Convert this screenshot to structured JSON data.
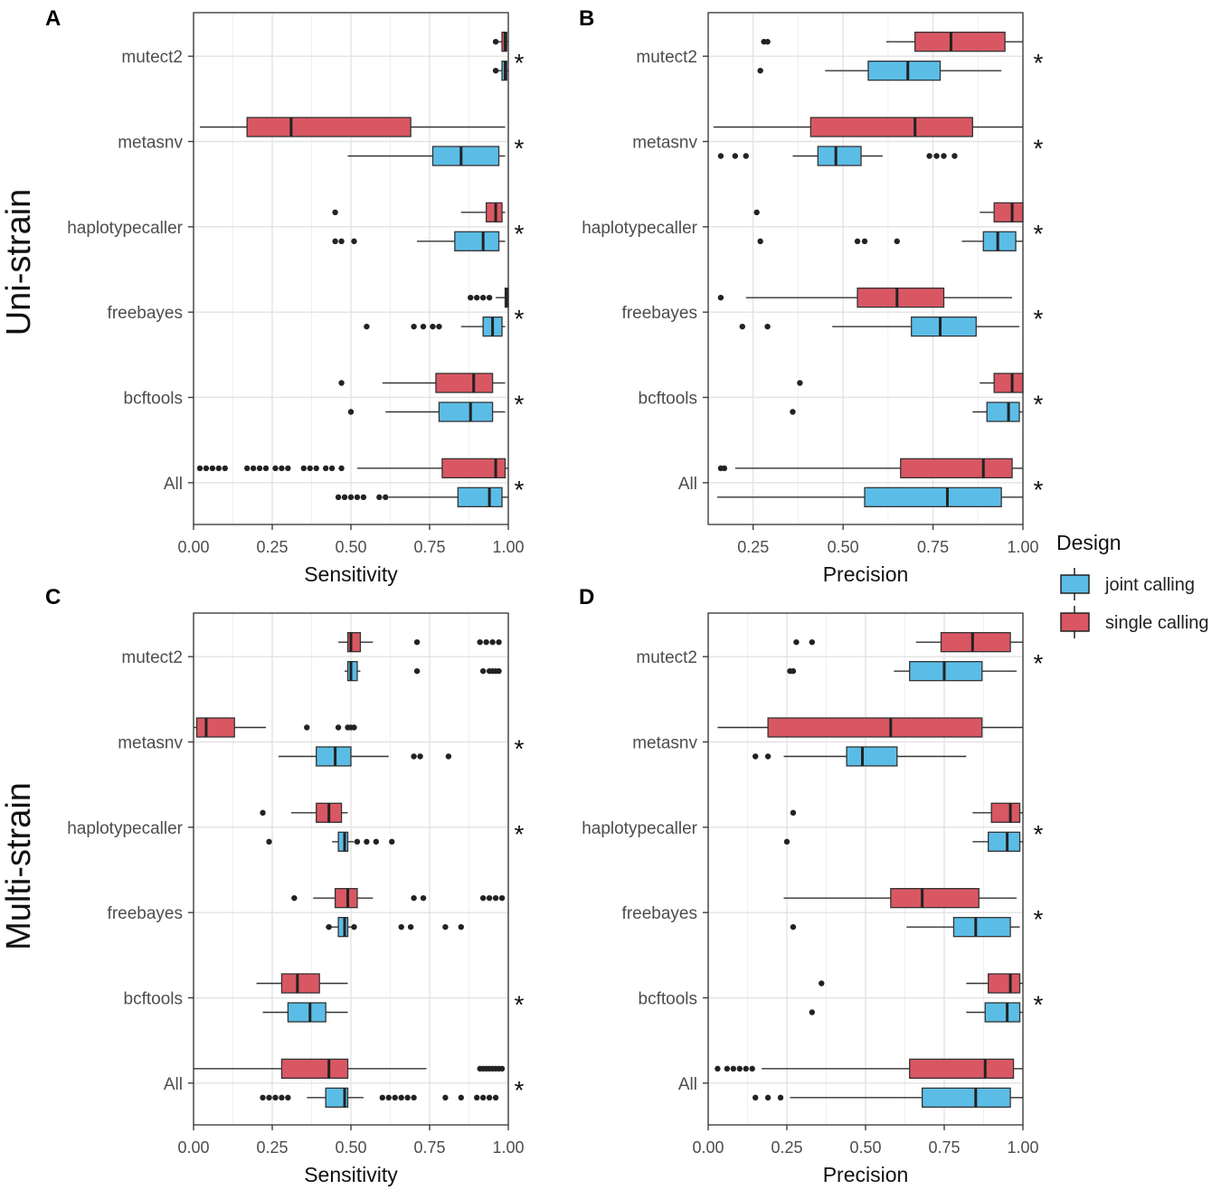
{
  "design_colors": {
    "joint": "#5bbde6",
    "single": "#d95763"
  },
  "chart_data": [
    {
      "type": "boxplot",
      "panel": "A",
      "title": "",
      "row_label": "Uni-strain",
      "xlabel": "Sensitivity",
      "ylabel": "",
      "xlim": [
        0,
        1
      ],
      "xticks": [
        0,
        0.25,
        0.5,
        0.75,
        1
      ],
      "xtick_labels": [
        "0.00",
        "0.25",
        "0.50",
        "0.75",
        "1.00"
      ],
      "categories": [
        "mutect2",
        "metasnv",
        "haplotypecaller",
        "freebayes",
        "bcftools",
        "All"
      ],
      "series": [
        {
          "name": "single calling",
          "boxes": [
            {
              "wlo": 0.96,
              "q1": 0.98,
              "med": 0.99,
              "q3": 0.995,
              "whi": 1.0,
              "out": [
                0.96
              ]
            },
            {
              "wlo": 0.02,
              "q1": 0.17,
              "med": 0.31,
              "q3": 0.69,
              "whi": 0.99,
              "out": []
            },
            {
              "wlo": 0.85,
              "q1": 0.93,
              "med": 0.96,
              "q3": 0.98,
              "whi": 0.99,
              "out": [
                0.45
              ]
            },
            {
              "wlo": 0.96,
              "q1": 0.99,
              "med": 0.995,
              "q3": 1.0,
              "whi": 1.0,
              "out": [
                0.88,
                0.9,
                0.92,
                0.94
              ]
            },
            {
              "wlo": 0.6,
              "q1": 0.77,
              "med": 0.89,
              "q3": 0.95,
              "whi": 0.99,
              "out": [
                0.47
              ]
            },
            {
              "wlo": 0.52,
              "q1": 0.79,
              "med": 0.96,
              "q3": 0.99,
              "whi": 1.0,
              "out": [
                0.02,
                0.04,
                0.06,
                0.08,
                0.1,
                0.17,
                0.19,
                0.21,
                0.23,
                0.26,
                0.28,
                0.3,
                0.35,
                0.37,
                0.39,
                0.42,
                0.44,
                0.47
              ]
            }
          ]
        },
        {
          "name": "joint calling",
          "boxes": [
            {
              "wlo": 0.96,
              "q1": 0.98,
              "med": 0.99,
              "q3": 0.995,
              "whi": 1.0,
              "out": [
                0.96
              ]
            },
            {
              "wlo": 0.49,
              "q1": 0.76,
              "med": 0.85,
              "q3": 0.97,
              "whi": 0.99,
              "out": []
            },
            {
              "wlo": 0.71,
              "q1": 0.83,
              "med": 0.92,
              "q3": 0.97,
              "whi": 0.99,
              "out": [
                0.45,
                0.47,
                0.51
              ]
            },
            {
              "wlo": 0.85,
              "q1": 0.92,
              "med": 0.95,
              "q3": 0.98,
              "whi": 0.99,
              "out": [
                0.55,
                0.7,
                0.73,
                0.76,
                0.78
              ]
            },
            {
              "wlo": 0.61,
              "q1": 0.78,
              "med": 0.88,
              "q3": 0.95,
              "whi": 0.99,
              "out": [
                0.5
              ]
            },
            {
              "wlo": 0.62,
              "q1": 0.84,
              "med": 0.94,
              "q3": 0.98,
              "whi": 1.0,
              "out": [
                0.46,
                0.48,
                0.5,
                0.52,
                0.54,
                0.59,
                0.61
              ]
            }
          ]
        }
      ],
      "significance": [
        "*",
        "*",
        "*",
        "*",
        "*",
        "*"
      ]
    },
    {
      "type": "boxplot",
      "panel": "B",
      "title": "",
      "row_label": "",
      "xlabel": "Precision",
      "ylabel": "",
      "xlim": [
        0.125,
        1
      ],
      "xticks": [
        0.25,
        0.5,
        0.75,
        1
      ],
      "xtick_labels": [
        "0.25",
        "0.50",
        "0.75",
        "1.00"
      ],
      "categories": [
        "mutect2",
        "metasnv",
        "haplotypecaller",
        "freebayes",
        "bcftools",
        "All"
      ],
      "series": [
        {
          "name": "single calling",
          "boxes": [
            {
              "wlo": 0.62,
              "q1": 0.7,
              "med": 0.8,
              "q3": 0.95,
              "whi": 1.0,
              "out": [
                0.28,
                0.29
              ]
            },
            {
              "wlo": 0.14,
              "q1": 0.41,
              "med": 0.7,
              "q3": 0.86,
              "whi": 1.0,
              "out": []
            },
            {
              "wlo": 0.88,
              "q1": 0.92,
              "med": 0.97,
              "q3": 1.0,
              "whi": 1.0,
              "out": [
                0.26
              ]
            },
            {
              "wlo": 0.23,
              "q1": 0.54,
              "med": 0.65,
              "q3": 0.78,
              "whi": 0.97,
              "out": [
                0.16
              ]
            },
            {
              "wlo": 0.88,
              "q1": 0.92,
              "med": 0.97,
              "q3": 1.0,
              "whi": 1.0,
              "out": [
                0.38
              ]
            },
            {
              "wlo": 0.2,
              "q1": 0.66,
              "med": 0.89,
              "q3": 0.97,
              "whi": 1.0,
              "out": [
                0.16,
                0.17
              ]
            }
          ]
        },
        {
          "name": "joint calling",
          "boxes": [
            {
              "wlo": 0.45,
              "q1": 0.57,
              "med": 0.68,
              "q3": 0.77,
              "whi": 0.94,
              "out": [
                0.27
              ]
            },
            {
              "wlo": 0.36,
              "q1": 0.43,
              "med": 0.48,
              "q3": 0.55,
              "whi": 0.61,
              "out": [
                0.16,
                0.2,
                0.23,
                0.74,
                0.76,
                0.78,
                0.81
              ]
            },
            {
              "wlo": 0.83,
              "q1": 0.89,
              "med": 0.93,
              "q3": 0.98,
              "whi": 1.0,
              "out": [
                0.27,
                0.54,
                0.56,
                0.65
              ]
            },
            {
              "wlo": 0.47,
              "q1": 0.69,
              "med": 0.77,
              "q3": 0.87,
              "whi": 0.99,
              "out": [
                0.22,
                0.29
              ]
            },
            {
              "wlo": 0.86,
              "q1": 0.9,
              "med": 0.96,
              "q3": 0.99,
              "whi": 1.0,
              "out": [
                0.36
              ]
            },
            {
              "wlo": 0.15,
              "q1": 0.56,
              "med": 0.79,
              "q3": 0.94,
              "whi": 1.0,
              "out": []
            }
          ]
        }
      ],
      "significance": [
        "*",
        "*",
        "*",
        "*",
        "*",
        "*"
      ]
    },
    {
      "type": "boxplot",
      "panel": "C",
      "title": "",
      "row_label": "Multi-strain",
      "xlabel": "Sensitivity",
      "ylabel": "",
      "xlim": [
        0,
        1
      ],
      "xticks": [
        0,
        0.25,
        0.5,
        0.75,
        1
      ],
      "xtick_labels": [
        "0.00",
        "0.25",
        "0.50",
        "0.75",
        "1.00"
      ],
      "categories": [
        "mutect2",
        "metasnv",
        "haplotypecaller",
        "freebayes",
        "bcftools",
        "All"
      ],
      "series": [
        {
          "name": "single calling",
          "boxes": [
            {
              "wlo": 0.46,
              "q1": 0.49,
              "med": 0.5,
              "q3": 0.53,
              "whi": 0.57,
              "out": [
                0.71,
                0.91,
                0.93,
                0.95,
                0.97
              ]
            },
            {
              "wlo": 0.0,
              "q1": 0.01,
              "med": 0.04,
              "q3": 0.13,
              "whi": 0.23,
              "out": [
                0.36,
                0.46,
                0.49,
                0.5,
                0.51
              ]
            },
            {
              "wlo": 0.31,
              "q1": 0.39,
              "med": 0.43,
              "q3": 0.47,
              "whi": 0.49,
              "out": [
                0.22
              ]
            },
            {
              "wlo": 0.38,
              "q1": 0.45,
              "med": 0.49,
              "q3": 0.52,
              "whi": 0.57,
              "out": [
                0.32,
                0.7,
                0.73,
                0.92,
                0.94,
                0.96,
                0.98
              ]
            },
            {
              "wlo": 0.2,
              "q1": 0.28,
              "med": 0.33,
              "q3": 0.4,
              "whi": 0.49,
              "out": []
            },
            {
              "wlo": 0.0,
              "q1": 0.28,
              "med": 0.43,
              "q3": 0.49,
              "whi": 0.74,
              "out": [
                0.91,
                0.92,
                0.93,
                0.94,
                0.95,
                0.96,
                0.97,
                0.98
              ]
            }
          ]
        },
        {
          "name": "joint calling",
          "boxes": [
            {
              "wlo": 0.48,
              "q1": 0.49,
              "med": 0.5,
              "q3": 0.52,
              "whi": 0.53,
              "out": [
                0.71,
                0.92,
                0.94,
                0.95,
                0.96,
                0.97
              ]
            },
            {
              "wlo": 0.27,
              "q1": 0.39,
              "med": 0.45,
              "q3": 0.5,
              "whi": 0.62,
              "out": [
                0.7,
                0.72,
                0.81
              ]
            },
            {
              "wlo": 0.44,
              "q1": 0.46,
              "med": 0.48,
              "q3": 0.49,
              "whi": 0.51,
              "out": [
                0.24,
                0.52,
                0.55,
                0.58,
                0.63
              ]
            },
            {
              "wlo": 0.42,
              "q1": 0.46,
              "med": 0.48,
              "q3": 0.49,
              "whi": 0.51,
              "out": [
                0.43,
                0.51,
                0.66,
                0.69,
                0.8,
                0.85
              ]
            },
            {
              "wlo": 0.22,
              "q1": 0.3,
              "med": 0.37,
              "q3": 0.42,
              "whi": 0.49,
              "out": []
            },
            {
              "wlo": 0.36,
              "q1": 0.42,
              "med": 0.48,
              "q3": 0.49,
              "whi": 0.54,
              "out": [
                0.22,
                0.24,
                0.26,
                0.28,
                0.3,
                0.6,
                0.62,
                0.64,
                0.66,
                0.68,
                0.7,
                0.8,
                0.85,
                0.9,
                0.92,
                0.94,
                0.96
              ]
            }
          ]
        }
      ],
      "significance": [
        "",
        "*",
        "*",
        "",
        "*",
        "*"
      ]
    },
    {
      "type": "boxplot",
      "panel": "D",
      "title": "",
      "row_label": "",
      "xlabel": "Precision",
      "ylabel": "",
      "xlim": [
        0,
        1
      ],
      "xticks": [
        0,
        0.25,
        0.5,
        0.75,
        1
      ],
      "xtick_labels": [
        "0.00",
        "0.25",
        "0.50",
        "0.75",
        "1.00"
      ],
      "categories": [
        "mutect2",
        "metasnv",
        "haplotypecaller",
        "freebayes",
        "bcftools",
        "All"
      ],
      "series": [
        {
          "name": "single calling",
          "boxes": [
            {
              "wlo": 0.66,
              "q1": 0.74,
              "med": 0.84,
              "q3": 0.96,
              "whi": 1.0,
              "out": [
                0.28,
                0.33
              ]
            },
            {
              "wlo": 0.03,
              "q1": 0.19,
              "med": 0.58,
              "q3": 0.87,
              "whi": 1.0,
              "out": []
            },
            {
              "wlo": 0.84,
              "q1": 0.9,
              "med": 0.96,
              "q3": 0.99,
              "whi": 1.0,
              "out": [
                0.27
              ]
            },
            {
              "wlo": 0.24,
              "q1": 0.58,
              "med": 0.68,
              "q3": 0.86,
              "whi": 0.98,
              "out": []
            },
            {
              "wlo": 0.82,
              "q1": 0.89,
              "med": 0.96,
              "q3": 0.99,
              "whi": 1.0,
              "out": [
                0.36
              ]
            },
            {
              "wlo": 0.17,
              "q1": 0.64,
              "med": 0.88,
              "q3": 0.97,
              "whi": 1.0,
              "out": [
                0.03,
                0.06,
                0.08,
                0.1,
                0.12,
                0.14
              ]
            }
          ]
        },
        {
          "name": "joint calling",
          "boxes": [
            {
              "wlo": 0.59,
              "q1": 0.64,
              "med": 0.75,
              "q3": 0.87,
              "whi": 0.98,
              "out": [
                0.26,
                0.27
              ]
            },
            {
              "wlo": 0.24,
              "q1": 0.44,
              "med": 0.49,
              "q3": 0.6,
              "whi": 0.82,
              "out": [
                0.15,
                0.19
              ]
            },
            {
              "wlo": 0.84,
              "q1": 0.89,
              "med": 0.95,
              "q3": 0.99,
              "whi": 1.0,
              "out": [
                0.25
              ]
            },
            {
              "wlo": 0.63,
              "q1": 0.78,
              "med": 0.85,
              "q3": 0.96,
              "whi": 0.99,
              "out": [
                0.27
              ]
            },
            {
              "wlo": 0.82,
              "q1": 0.88,
              "med": 0.95,
              "q3": 0.99,
              "whi": 1.0,
              "out": [
                0.33
              ]
            },
            {
              "wlo": 0.26,
              "q1": 0.68,
              "med": 0.85,
              "q3": 0.96,
              "whi": 1.0,
              "out": [
                0.15,
                0.19,
                0.23
              ]
            }
          ]
        }
      ],
      "significance": [
        "*",
        "",
        "*",
        "*",
        "*",
        ""
      ]
    }
  ],
  "legend": {
    "title": "Design",
    "items": [
      {
        "label": "joint calling",
        "color": "#5bbde6"
      },
      {
        "label": "single calling",
        "color": "#d95763"
      }
    ]
  }
}
